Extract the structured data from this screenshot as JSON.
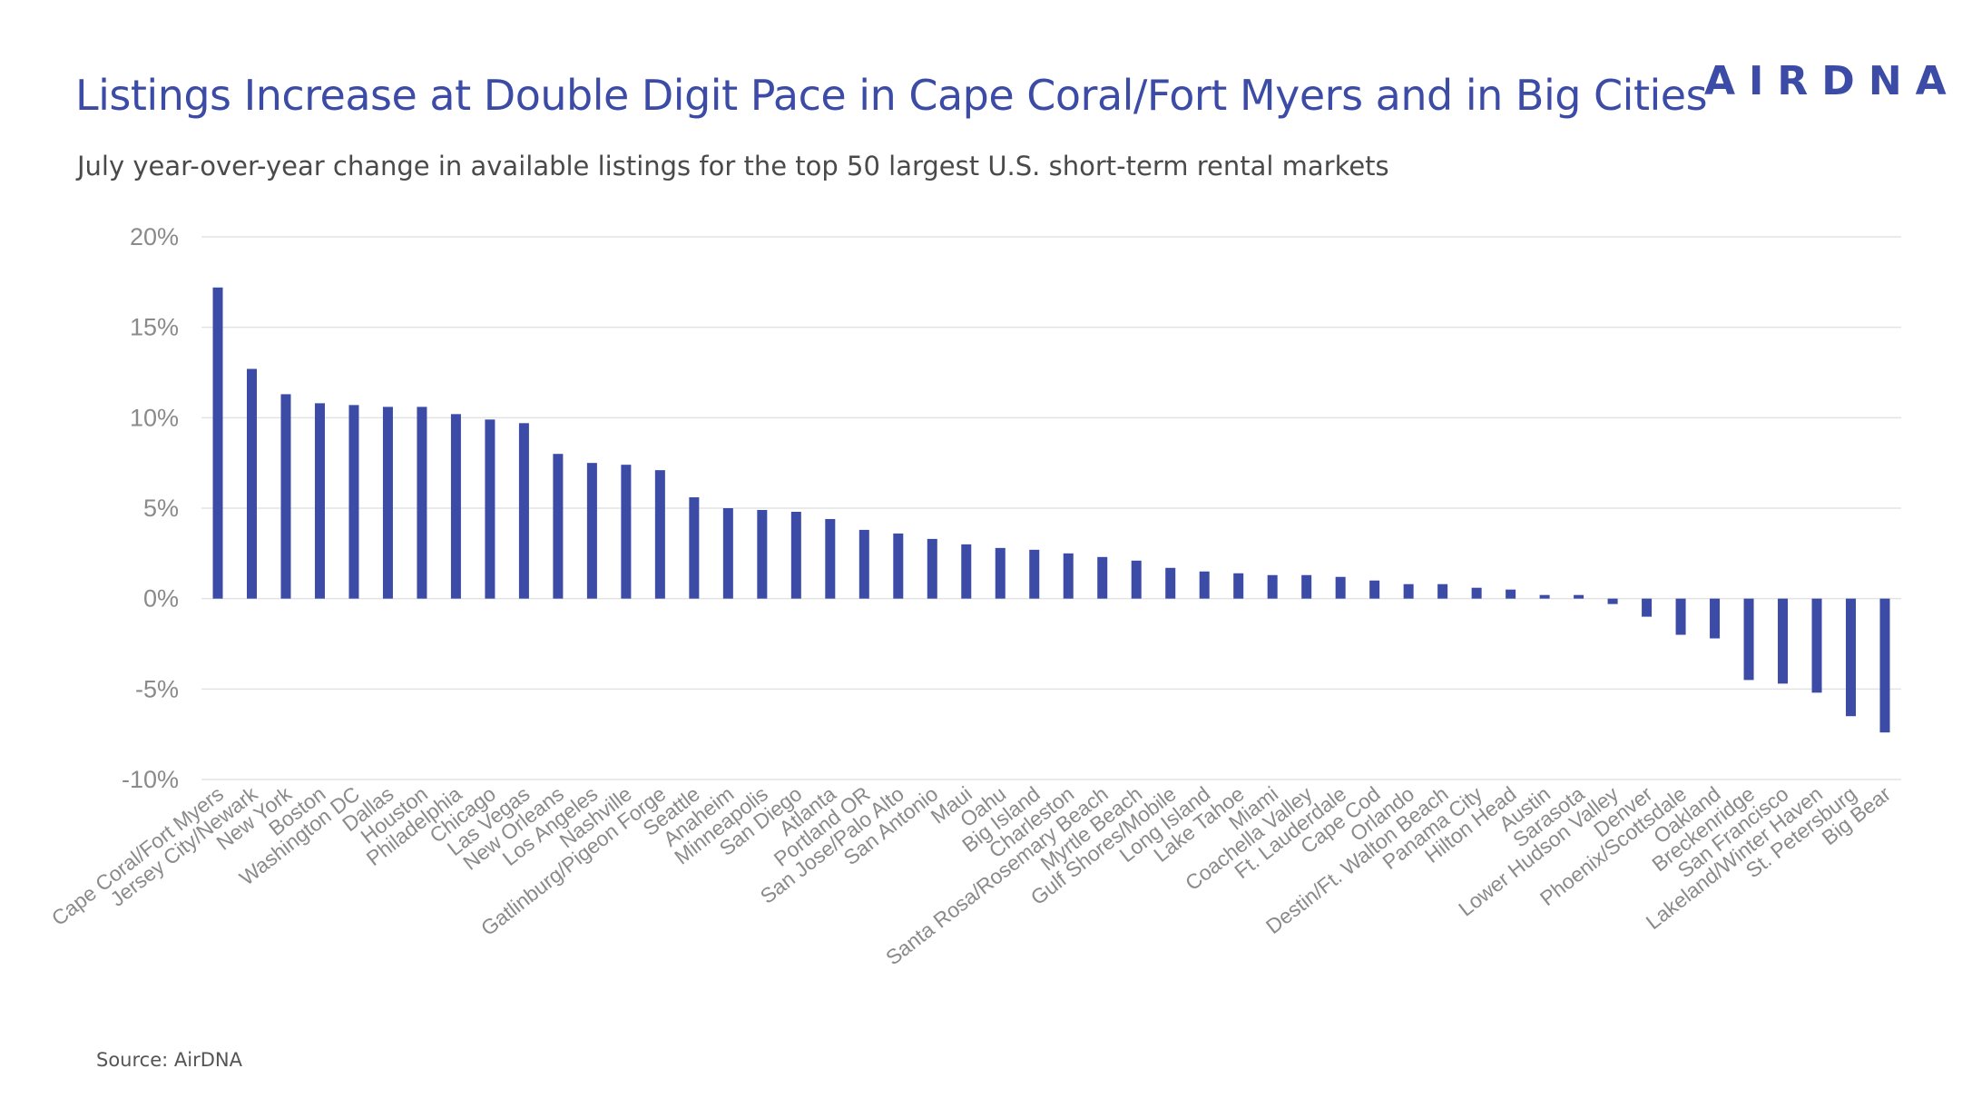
{
  "header": {
    "title": "Listings Increase at Double Digit Pace in Cape Coral/Fort Myers and in Big Cities",
    "subtitle": "July year-over-year change in available listings for the top 50 largest U.S. short-term rental markets",
    "brand": "AIRDNA"
  },
  "footer": {
    "source": "Source: AirDNA"
  },
  "colors": {
    "bar": "#3b4ba6",
    "grid": "#e3e3e3",
    "title": "#3b4ba6",
    "tick_text": "#8a8a8a"
  },
  "chart_data": {
    "type": "bar",
    "title": "Listings Increase at Double Digit Pace in Cape Coral/Fort Myers and in Big Cities",
    "subtitle": "July year-over-year change in available listings for the top 50 largest U.S. short-term rental markets",
    "xlabel": "",
    "ylabel": "",
    "ylim": [
      -10,
      20
    ],
    "yticks": [
      20,
      15,
      10,
      5,
      0,
      -5,
      -10
    ],
    "ytick_labels": [
      "20%",
      "15%",
      "10%",
      "5%",
      "0%",
      "-5%",
      "-10%"
    ],
    "grid": true,
    "legend": "none",
    "categories": [
      "Cape Coral/Fort Myers",
      "Jersey City/Newark",
      "New York",
      "Boston",
      "Washington DC",
      "Dallas",
      "Houston",
      "Philadelphia",
      "Chicago",
      "Las Vegas",
      "New Orleans",
      "Los Angeles",
      "Nashville",
      "Gatlinburg/Pigeon Forge",
      "Seattle",
      "Anaheim",
      "Minneapolis",
      "San Diego",
      "Atlanta",
      "Portland OR",
      "San Jose/Palo Alto",
      "San Antonio",
      "Maui",
      "Oahu",
      "Big Island",
      "Charleston",
      "Santa Rosa/Rosemary Beach",
      "Myrtle Beach",
      "Gulf Shores/Mobile",
      "Long Island",
      "Lake Tahoe",
      "Miami",
      "Coachella Valley",
      "Ft. Lauderdale",
      "Cape Cod",
      "Orlando",
      "Destin/Ft. Walton Beach",
      "Panama City",
      "Hilton Head",
      "Austin",
      "Sarasota",
      "Lower Hudson Valley",
      "Denver",
      "Phoenix/Scottsdale",
      "Oakland",
      "Breckenridge",
      "San Francisco",
      "Lakeland/Winter Haven",
      "St. Petersburg",
      "Big Bear"
    ],
    "values": [
      17.2,
      12.7,
      11.3,
      10.8,
      10.7,
      10.6,
      10.6,
      10.2,
      9.9,
      9.7,
      8.0,
      7.5,
      7.4,
      7.1,
      5.6,
      5.0,
      4.9,
      4.8,
      4.4,
      3.8,
      3.6,
      3.3,
      3.0,
      2.8,
      2.7,
      2.5,
      2.3,
      2.1,
      1.7,
      1.5,
      1.4,
      1.3,
      1.3,
      1.2,
      1.0,
      0.8,
      0.8,
      0.6,
      0.5,
      0.2,
      0.2,
      -0.3,
      -1.0,
      -2.0,
      -2.2,
      -4.5,
      -4.7,
      -5.2,
      -6.5,
      -7.4
    ]
  }
}
